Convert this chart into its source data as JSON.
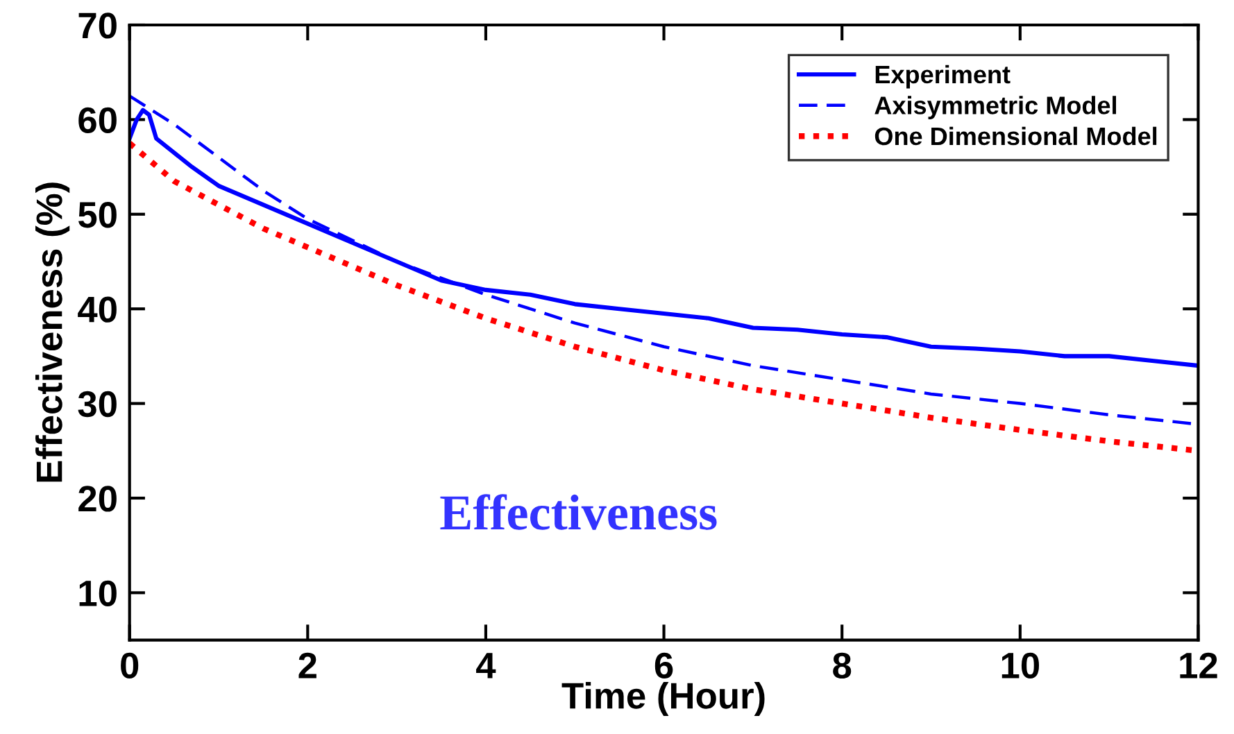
{
  "chart_data": {
    "type": "line",
    "xlabel": "Time (Hour)",
    "ylabel": "Effectiveness (%)",
    "xlim": [
      0,
      12
    ],
    "ylim": [
      5,
      70
    ],
    "xticks": [
      0,
      2,
      4,
      6,
      8,
      10,
      12
    ],
    "yticks": [
      10,
      20,
      30,
      40,
      50,
      60,
      70
    ],
    "grid": false,
    "legend": "top right",
    "annotations": [
      "Effectiveness"
    ],
    "series": [
      {
        "name": "Experiment",
        "color": "#0000ff",
        "line_style": "solid",
        "x": [
          0,
          0.08,
          0.15,
          0.22,
          0.3,
          0.5,
          0.7,
          1,
          1.5,
          2,
          2.5,
          3,
          3.5,
          4,
          4.5,
          5,
          5.5,
          6,
          6.5,
          7,
          7.5,
          8,
          8.5,
          9,
          9.5,
          10,
          10.5,
          11,
          11.5,
          12
        ],
        "values": [
          58,
          60,
          61,
          60.5,
          58,
          56.5,
          55,
          53,
          51,
          49,
          47,
          45,
          43,
          42,
          41.5,
          40.5,
          40,
          39.5,
          39,
          38,
          37.8,
          37.3,
          37,
          36,
          35.8,
          35.5,
          35,
          35,
          34.5,
          34
        ]
      },
      {
        "name": "Axisymmetric Model",
        "color": "#0000ff",
        "line_style": "dashed",
        "x": [
          0,
          0.25,
          0.5,
          1,
          1.5,
          2,
          3,
          4,
          5,
          6,
          7,
          8,
          9,
          10,
          11,
          12
        ],
        "values": [
          62.5,
          61,
          59.5,
          56,
          52.5,
          49.5,
          45,
          41.5,
          38.5,
          36,
          34,
          32.5,
          31,
          30,
          28.8,
          27.8
        ]
      },
      {
        "name": "One Dimensional Model",
        "color": "#ff0000",
        "line_style": "dotted",
        "x": [
          0,
          0.25,
          0.5,
          1,
          1.5,
          2,
          3,
          4,
          5,
          6,
          7,
          8,
          9,
          10,
          11,
          12
        ],
        "values": [
          57.5,
          55.5,
          53.5,
          51,
          48.5,
          46.5,
          42.5,
          39,
          36,
          33.5,
          31.5,
          30,
          28.5,
          27.2,
          26,
          25
        ]
      }
    ]
  }
}
